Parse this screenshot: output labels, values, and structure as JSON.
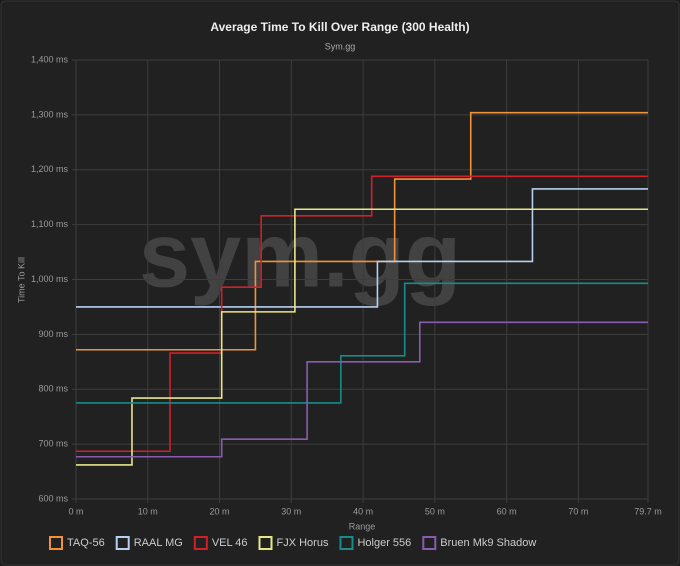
{
  "chart_data": {
    "type": "step-line",
    "title": "Average Time To Kill Over Range (300 Health)",
    "subtitle": "Sym.gg",
    "watermark": "sym.gg",
    "x_label": "Range",
    "y_label": "Time To Kill",
    "xlim": [
      0,
      79.7
    ],
    "ylim": [
      600,
      1400
    ],
    "xticks": [
      {
        "value": 0,
        "label": "0 m"
      },
      {
        "value": 10,
        "label": "10 m"
      },
      {
        "value": 20,
        "label": "20 m"
      },
      {
        "value": 30,
        "label": "30 m"
      },
      {
        "value": 40,
        "label": "40 m"
      },
      {
        "value": 50,
        "label": "50 m"
      },
      {
        "value": 60,
        "label": "60 m"
      },
      {
        "value": 70,
        "label": "70 m"
      },
      {
        "value": 79.7,
        "label": "79.7 m"
      }
    ],
    "yticks": [
      {
        "value": 600,
        "label": "600 ms"
      },
      {
        "value": 700,
        "label": "700 ms"
      },
      {
        "value": 800,
        "label": "800 ms"
      },
      {
        "value": 900,
        "label": "900 ms"
      },
      {
        "value": 1000,
        "label": "1,000 ms"
      },
      {
        "value": 1100,
        "label": "1,100 ms"
      },
      {
        "value": 1200,
        "label": "1,200 ms"
      },
      {
        "value": 1300,
        "label": "1,300 ms"
      },
      {
        "value": 1400,
        "label": "1,400 ms"
      }
    ],
    "grid": true,
    "legend": "bottom",
    "series": [
      {
        "name": "TAQ-56",
        "color": "#f0923a",
        "x": [
          0,
          25,
          44.4,
          55,
          79.7
        ],
        "values": [
          872,
          1033,
          1183,
          1304,
          1304
        ]
      },
      {
        "name": "RAAL MG",
        "color": "#b8d0f0",
        "x": [
          0,
          42,
          63.6,
          79.7
        ],
        "values": [
          950,
          1033,
          1165,
          1165
        ]
      },
      {
        "name": "VEL 46",
        "color": "#d0202a",
        "x": [
          0,
          13.1,
          20.3,
          25.8,
          41.2,
          79.7
        ],
        "values": [
          687,
          866,
          986,
          1116,
          1188,
          1188
        ]
      },
      {
        "name": "FJX Horus",
        "color": "#e6e68a",
        "x": [
          0,
          7.8,
          20.3,
          30.5,
          79.7
        ],
        "values": [
          662,
          784,
          941,
          1128,
          1128
        ]
      },
      {
        "name": "Holger 556",
        "color": "#1a8a8a",
        "x": [
          0,
          36.9,
          45.8,
          79.7
        ],
        "values": [
          775,
          861,
          993,
          993
        ]
      },
      {
        "name": "Bruen Mk9 Shadow",
        "color": "#8a5cb0",
        "x": [
          0,
          20.3,
          32.2,
          47.9,
          79.7
        ],
        "values": [
          677,
          709,
          850,
          922,
          922
        ]
      }
    ]
  }
}
